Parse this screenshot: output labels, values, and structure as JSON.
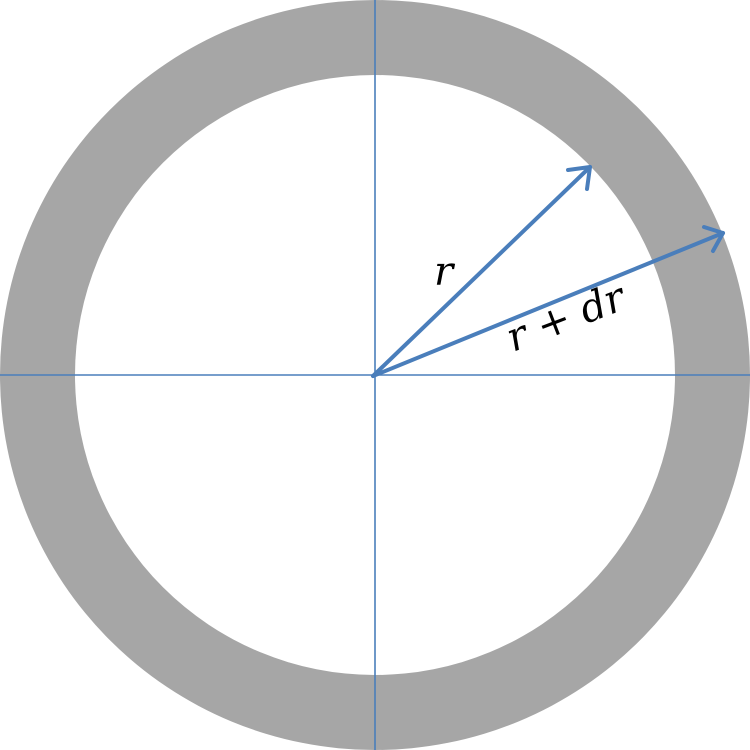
{
  "labels": {
    "inner_radius": "r",
    "outer_radius": "r + dr"
  },
  "colors": {
    "ring_fill": "#a6a6a6",
    "inner_fill": "#ffffff",
    "axis_stroke": "#4a7ebb",
    "arrow_stroke": "#4a7ebb",
    "label_color": "#000000"
  },
  "icons": {
    "arrowhead": "open-chevron-arrowhead"
  }
}
